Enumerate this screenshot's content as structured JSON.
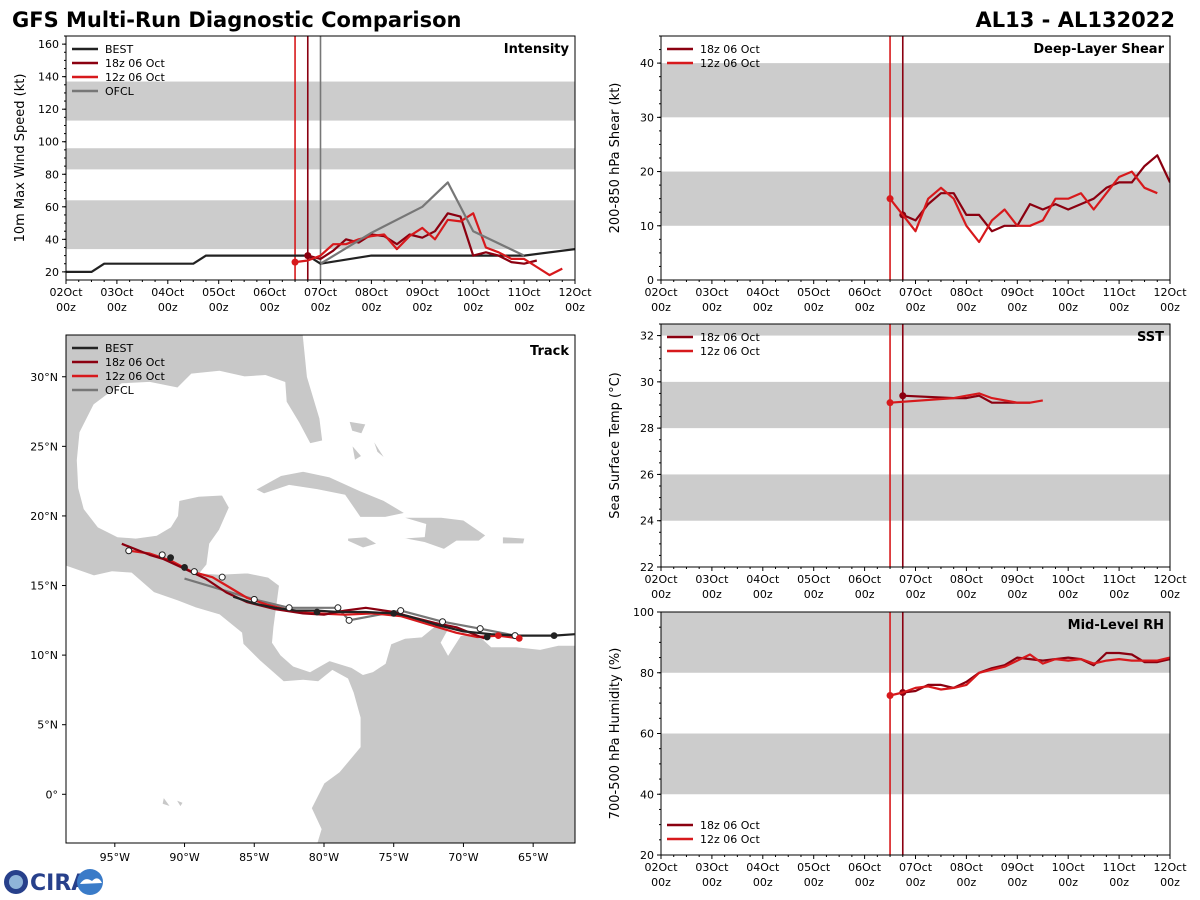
{
  "header": {
    "title": "GFS Multi-Run Diagnostic Comparison",
    "storm_id": "AL13 - AL132022"
  },
  "colors": {
    "best": "#222222",
    "run18z": "#8b0010",
    "run12z": "#d7191c",
    "ofcl": "#777777",
    "band": "#cccccc",
    "land": "#c8c8c8"
  },
  "logo": {
    "text": "CIRA"
  },
  "time_axis": {
    "ticks": [
      "02Oct",
      "03Oct",
      "04Oct",
      "05Oct",
      "06Oct",
      "07Oct",
      "08Oct",
      "09Oct",
      "10Oct",
      "11Oct",
      "12Oct"
    ],
    "sub": "00z"
  },
  "chart_data": [
    {
      "id": "intensity",
      "type": "line",
      "title": "Intensity",
      "ylabel": "10m Max Wind Speed (kt)",
      "xlim": [
        0,
        10
      ],
      "ylim": [
        15,
        165
      ],
      "yticks": [
        20,
        40,
        60,
        80,
        100,
        120,
        140,
        160
      ],
      "bands": [
        [
          34,
          64
        ],
        [
          83,
          96
        ],
        [
          113,
          137
        ]
      ],
      "vlines": [
        {
          "x": 4.5,
          "series": "run12z"
        },
        {
          "x": 4.75,
          "series": "run18z"
        },
        {
          "x": 5.0,
          "series": "ofcl"
        }
      ],
      "legend": [
        {
          "label": "BEST",
          "series": "best"
        },
        {
          "label": "18z 06 Oct",
          "series": "run18z"
        },
        {
          "label": "12z 06 Oct",
          "series": "run12z"
        },
        {
          "label": "OFCL",
          "series": "ofcl"
        }
      ],
      "series": [
        {
          "name": "BEST",
          "key": "best",
          "x": [
            0,
            0.5,
            0.75,
            1,
            2,
            2.5,
            2.75,
            3,
            4,
            4.75,
            5,
            6,
            7,
            8,
            9,
            10
          ],
          "y": [
            20,
            20,
            25,
            25,
            25,
            25,
            30,
            30,
            30,
            30,
            25,
            30,
            30,
            30,
            30,
            34
          ]
        },
        {
          "name": "18z 06 Oct",
          "key": "run18z",
          "x": [
            4.75,
            5,
            5.25,
            5.5,
            5.75,
            6,
            6.25,
            6.5,
            6.75,
            7,
            7.25,
            7.5,
            7.75,
            8,
            8.25,
            8.5,
            8.75,
            9,
            9.25
          ],
          "y": [
            30,
            28,
            33,
            40,
            38,
            43,
            42,
            37,
            43,
            41,
            45,
            56,
            54,
            30,
            32,
            30,
            26,
            25,
            27
          ]
        },
        {
          "name": "12z 06 Oct",
          "key": "run12z",
          "x": [
            4.5,
            4.75,
            5,
            5.25,
            5.5,
            5.75,
            6,
            6.25,
            6.5,
            6.75,
            7,
            7.25,
            7.5,
            7.75,
            8,
            8.25,
            8.5,
            8.75,
            9,
            9.25,
            9.5,
            9.75
          ],
          "y": [
            26,
            27,
            30,
            37,
            37,
            40,
            42,
            43,
            34,
            42,
            47,
            40,
            52,
            51,
            56,
            35,
            32,
            28,
            28,
            23,
            18,
            22
          ]
        },
        {
          "name": "OFCL",
          "key": "ofcl",
          "x": [
            5,
            6,
            7,
            7.5,
            8,
            9
          ],
          "y": [
            25,
            44,
            60,
            75,
            45,
            30
          ]
        }
      ]
    },
    {
      "id": "shear",
      "type": "line",
      "title": "Deep-Layer Shear",
      "ylabel": "200-850 hPa Shear (kt)",
      "xlim": [
        0,
        10
      ],
      "ylim": [
        0,
        45
      ],
      "yticks": [
        0,
        10,
        20,
        30,
        40
      ],
      "bands": [
        [
          10,
          20
        ],
        [
          30,
          40
        ]
      ],
      "vlines": [
        {
          "x": 4.5,
          "series": "run12z"
        },
        {
          "x": 4.75,
          "series": "run18z"
        }
      ],
      "legend": [
        {
          "label": "18z 06 Oct",
          "series": "run18z"
        },
        {
          "label": "12z 06 Oct",
          "series": "run12z"
        }
      ],
      "series": [
        {
          "name": "18z 06 Oct",
          "key": "run18z",
          "x": [
            4.75,
            5,
            5.25,
            5.5,
            5.75,
            6,
            6.25,
            6.5,
            6.75,
            7,
            7.25,
            7.5,
            7.75,
            8,
            8.25,
            8.5,
            8.75,
            9,
            9.25,
            9.5,
            9.75,
            10
          ],
          "y": [
            12,
            11,
            14,
            16,
            16,
            12,
            12,
            9,
            10,
            10,
            14,
            13,
            14,
            13,
            14,
            15,
            17,
            18,
            18,
            21,
            23,
            18
          ]
        },
        {
          "name": "12z 06 Oct",
          "key": "run12z",
          "x": [
            4.5,
            4.75,
            5,
            5.25,
            5.5,
            5.75,
            6,
            6.25,
            6.5,
            6.75,
            7,
            7.25,
            7.5,
            7.75,
            8,
            8.25,
            8.5,
            8.75,
            9,
            9.25,
            9.5,
            9.75
          ],
          "y": [
            15,
            12,
            9,
            15,
            17,
            15,
            10,
            7,
            11,
            13,
            10,
            10,
            11,
            15,
            15,
            16,
            13,
            16,
            19,
            20,
            17,
            16
          ]
        }
      ]
    },
    {
      "id": "sst",
      "type": "line",
      "title": "SST",
      "ylabel": "Sea Surface Temp (°C)",
      "xlim": [
        0,
        10
      ],
      "ylim": [
        22,
        32.5
      ],
      "yticks": [
        22,
        24,
        26,
        28,
        30,
        32
      ],
      "bands": [
        [
          24,
          26
        ],
        [
          28,
          30
        ],
        [
          32,
          32.5
        ]
      ],
      "vlines": [
        {
          "x": 4.5,
          "series": "run12z"
        },
        {
          "x": 4.75,
          "series": "run18z"
        }
      ],
      "legend": [
        {
          "label": "18z 06 Oct",
          "series": "run18z"
        },
        {
          "label": "12z 06 Oct",
          "series": "run12z"
        }
      ],
      "series": [
        {
          "name": "18z 06 Oct",
          "key": "run18z",
          "x": [
            4.75,
            5.75,
            6,
            6.25,
            6.5,
            7,
            7.25
          ],
          "y": [
            29.4,
            29.3,
            29.3,
            29.4,
            29.1,
            29.1,
            29.1
          ]
        },
        {
          "name": "12z 06 Oct",
          "key": "run12z",
          "x": [
            4.5,
            5.75,
            6,
            6.25,
            6.5,
            7,
            7.25,
            7.5
          ],
          "y": [
            29.1,
            29.3,
            29.4,
            29.5,
            29.3,
            29.1,
            29.1,
            29.2
          ]
        }
      ]
    },
    {
      "id": "rh",
      "type": "line",
      "title": "Mid-Level RH",
      "ylabel": "700-500 hPa Humidity (%)",
      "xlim": [
        0,
        10
      ],
      "ylim": [
        20,
        100
      ],
      "yticks": [
        20,
        40,
        60,
        80,
        100
      ],
      "bands": [
        [
          40,
          60
        ],
        [
          80,
          100
        ]
      ],
      "vlines": [
        {
          "x": 4.5,
          "series": "run12z"
        },
        {
          "x": 4.75,
          "series": "run18z"
        }
      ],
      "legend": [
        {
          "label": "18z 06 Oct",
          "series": "run18z"
        },
        {
          "label": "12z 06 Oct",
          "series": "run12z"
        }
      ],
      "series": [
        {
          "name": "18z 06 Oct",
          "key": "run18z",
          "x": [
            4.75,
            5,
            5.25,
            5.5,
            5.75,
            6,
            6.25,
            6.5,
            6.75,
            7,
            7.25,
            7.5,
            7.75,
            8,
            8.25,
            8.5,
            8.75,
            9,
            9.25,
            9.5,
            9.75,
            10
          ],
          "y": [
            73.5,
            74,
            76,
            76,
            75,
            77,
            80,
            81.5,
            82.5,
            85,
            84.5,
            84,
            84.5,
            85,
            84.5,
            82.5,
            86.5,
            86.5,
            86,
            83.5,
            83.5,
            84.5
          ]
        },
        {
          "name": "12z 06 Oct",
          "key": "run12z",
          "x": [
            4.5,
            4.75,
            5,
            5.25,
            5.5,
            5.75,
            6,
            6.25,
            6.5,
            6.75,
            7,
            7.25,
            7.5,
            7.75,
            8,
            8.25,
            8.5,
            8.75,
            9,
            9.25,
            9.5,
            9.75,
            10
          ],
          "y": [
            72.5,
            73.5,
            75,
            75.5,
            74.5,
            75,
            76,
            80,
            81,
            82,
            84,
            86,
            83,
            84.5,
            84,
            84.5,
            83,
            84,
            84.5,
            84,
            84,
            84,
            85
          ]
        }
      ]
    },
    {
      "id": "track",
      "type": "scatter",
      "title": "Track",
      "xlabel": "",
      "ylabel": "",
      "xlim": [
        -98.5,
        -62
      ],
      "ylim": [
        -3.5,
        33
      ],
      "xticks": [
        -95,
        -90,
        -85,
        -80,
        -75,
        -70,
        -65
      ],
      "xticklabels": [
        "95°W",
        "90°W",
        "85°W",
        "80°W",
        "75°W",
        "70°W",
        "65°W"
      ],
      "yticks": [
        0,
        5,
        10,
        15,
        20,
        25,
        30
      ],
      "yticklabels": [
        "0°",
        "5°N",
        "10°N",
        "15°N",
        "20°N",
        "25°N",
        "30°N"
      ],
      "legend": [
        {
          "label": "BEST",
          "series": "best"
        },
        {
          "label": "18z 06 Oct",
          "series": "run18z"
        },
        {
          "label": "12z 06 Oct",
          "series": "run12z"
        },
        {
          "label": "OFCL",
          "series": "ofcl"
        }
      ],
      "series": [
        {
          "name": "BEST",
          "key": "best",
          "lon": [
            -62,
            -63.5,
            -66,
            -68,
            -70,
            -72,
            -74,
            -75,
            -77,
            -79,
            -80.5,
            -82,
            -83.5,
            -85,
            -86.5
          ],
          "lat": [
            11.5,
            11.4,
            11.4,
            11.5,
            11.7,
            12.2,
            12.8,
            13.0,
            13.1,
            13.1,
            13.2,
            13.2,
            13.4,
            13.7,
            14.2
          ]
        },
        {
          "name": "18z 06 Oct",
          "key": "run18z",
          "lon": [
            -68.5,
            -69,
            -70.5,
            -72,
            -74,
            -75,
            -77,
            -78.5,
            -80,
            -81.5,
            -83.5,
            -85.5,
            -87,
            -88.5,
            -90,
            -91.5,
            -92.5,
            -94.5
          ],
          "lat": [
            11.2,
            11.4,
            12.0,
            12.3,
            12.8,
            13.1,
            13.4,
            13.2,
            12.9,
            13.0,
            13.3,
            13.8,
            14.5,
            15.5,
            16.2,
            16.9,
            17.2,
            18.0
          ]
        },
        {
          "name": "12z 06 Oct",
          "key": "run12z",
          "lon": [
            -66,
            -67.5,
            -69,
            -70.5,
            -72.5,
            -74.5,
            -76.5,
            -78.5,
            -80.5,
            -82,
            -84,
            -85.5,
            -87,
            -88,
            -89.5,
            -91,
            -92.5,
            -94
          ],
          "lat": [
            11.2,
            11.4,
            11.3,
            11.6,
            12.2,
            12.8,
            13.0,
            12.9,
            13.0,
            13.1,
            13.6,
            14.1,
            15.0,
            15.6,
            16.0,
            16.8,
            17.3,
            17.5
          ]
        },
        {
          "name": "OFCL",
          "key": "ofcl",
          "lon": [
            -66.3,
            -68.8,
            -71.5,
            -74.5,
            -78.2,
            -79,
            -82.5,
            -85,
            -90
          ],
          "lat": [
            11.4,
            11.9,
            12.4,
            13.2,
            12.5,
            13.4,
            13.4,
            14.0,
            15.5
          ]
        }
      ],
      "markers": [
        {
          "key": "best",
          "lon": [
            -63.5,
            -68.3,
            -75,
            -80.5,
            -85,
            -90,
            -91
          ],
          "lat": [
            11.4,
            11.3,
            13.0,
            13.1,
            14.0,
            16.3,
            17.0
          ]
        },
        {
          "key": "ofcl",
          "lon": [
            -66.3,
            -68.8,
            -71.5,
            -74.5,
            -78.2,
            -79,
            -82.5,
            -85,
            -87.3,
            -89.3,
            -91.6,
            -94
          ],
          "lat": [
            11.4,
            11.9,
            12.4,
            13.2,
            12.5,
            13.4,
            13.4,
            14.0,
            15.6,
            16.0,
            17.2,
            17.5
          ]
        },
        {
          "key": "run12z",
          "lon": [
            -66,
            -67.5
          ],
          "lat": [
            11.2,
            11.4
          ]
        }
      ]
    }
  ]
}
